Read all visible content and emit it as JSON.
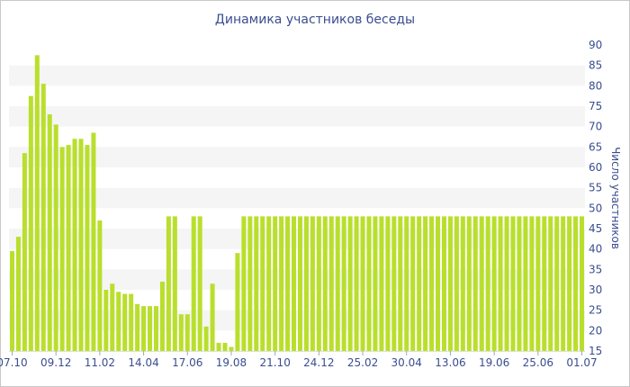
{
  "chart_data": {
    "type": "bar",
    "title": "Динамика участников беседы",
    "xlabel": "",
    "ylabel": "Число участников",
    "ylim": [
      15,
      90
    ],
    "yticks": [
      15,
      20,
      25,
      30,
      35,
      40,
      45,
      50,
      55,
      60,
      65,
      70,
      75,
      80,
      85,
      90
    ],
    "x_tick_labels": [
      "07.10",
      "09.12",
      "11.02",
      "14.04",
      "17.06",
      "19.08",
      "21.10",
      "24.12",
      "25.02",
      "30.04",
      "13.06",
      "19.06",
      "25.06",
      "01.07"
    ],
    "x_tick_indices": [
      0,
      7,
      14,
      21,
      28,
      35,
      42,
      49,
      56,
      63,
      70,
      77,
      84,
      91
    ],
    "bar_color": "#b9df2c",
    "grid": "alternating horizontal bands",
    "values": [
      39.5,
      43,
      63.5,
      77.5,
      87.5,
      80.5,
      73,
      70.5,
      65,
      65.5,
      67,
      67,
      65.5,
      68.5,
      47,
      30,
      31.5,
      29.5,
      29,
      29,
      26.5,
      26,
      26,
      26,
      32,
      48,
      48,
      24,
      24,
      48,
      48,
      21,
      31.5,
      17,
      17,
      16,
      39,
      48,
      48,
      48,
      48,
      48,
      48,
      48,
      48,
      48,
      48,
      48,
      48,
      48,
      48,
      48,
      48,
      48,
      48,
      48,
      48,
      48,
      48,
      48,
      48,
      48,
      48,
      48,
      48,
      48,
      48,
      48,
      48,
      48,
      48,
      48,
      48,
      48,
      48,
      48,
      48,
      48,
      48,
      48,
      48,
      48,
      48,
      48,
      48,
      48,
      48,
      48,
      48,
      48,
      48,
      48
    ]
  }
}
